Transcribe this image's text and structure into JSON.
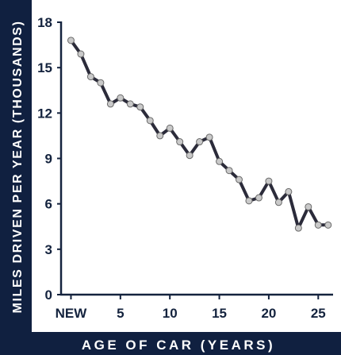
{
  "chart_data": {
    "type": "line",
    "xlabel": "AGE OF CAR (YEARS)",
    "ylabel": "MILES DRIVEN PER YEAR (THOUSANDS)",
    "x_tick_labels": [
      "NEW",
      "5",
      "10",
      "15",
      "20",
      "25"
    ],
    "x_tick_values": [
      0,
      5,
      10,
      15,
      20,
      25
    ],
    "y_tick_labels": [
      "0",
      "3",
      "6",
      "9",
      "12",
      "15",
      "18"
    ],
    "y_tick_values": [
      0,
      3,
      6,
      9,
      12,
      15,
      18
    ],
    "xlim": [
      -1,
      26.5
    ],
    "ylim": [
      0,
      18
    ],
    "grid": false,
    "series": [
      {
        "x": [
          0,
          1,
          2,
          3,
          4,
          5,
          6,
          7,
          8,
          9,
          10,
          11,
          12,
          13,
          14,
          15,
          16,
          17,
          18,
          19,
          20,
          21,
          22,
          23,
          24,
          25,
          26
        ],
        "y": [
          16.8,
          15.9,
          14.4,
          14.0,
          12.6,
          13.0,
          12.6,
          12.4,
          11.5,
          10.5,
          11.0,
          10.1,
          9.2,
          10.1,
          10.4,
          8.8,
          8.2,
          7.6,
          6.2,
          6.4,
          7.5,
          6.1,
          6.8,
          4.4,
          5.8,
          4.6,
          4.6
        ]
      }
    ],
    "colors": {
      "band": "#102040",
      "line": "#2b2b3a",
      "marker_fill": "#c9c9c9",
      "marker_stroke": "#6a6a6a",
      "text_dark": "#14233e",
      "band_text": "#ffffff"
    }
  }
}
